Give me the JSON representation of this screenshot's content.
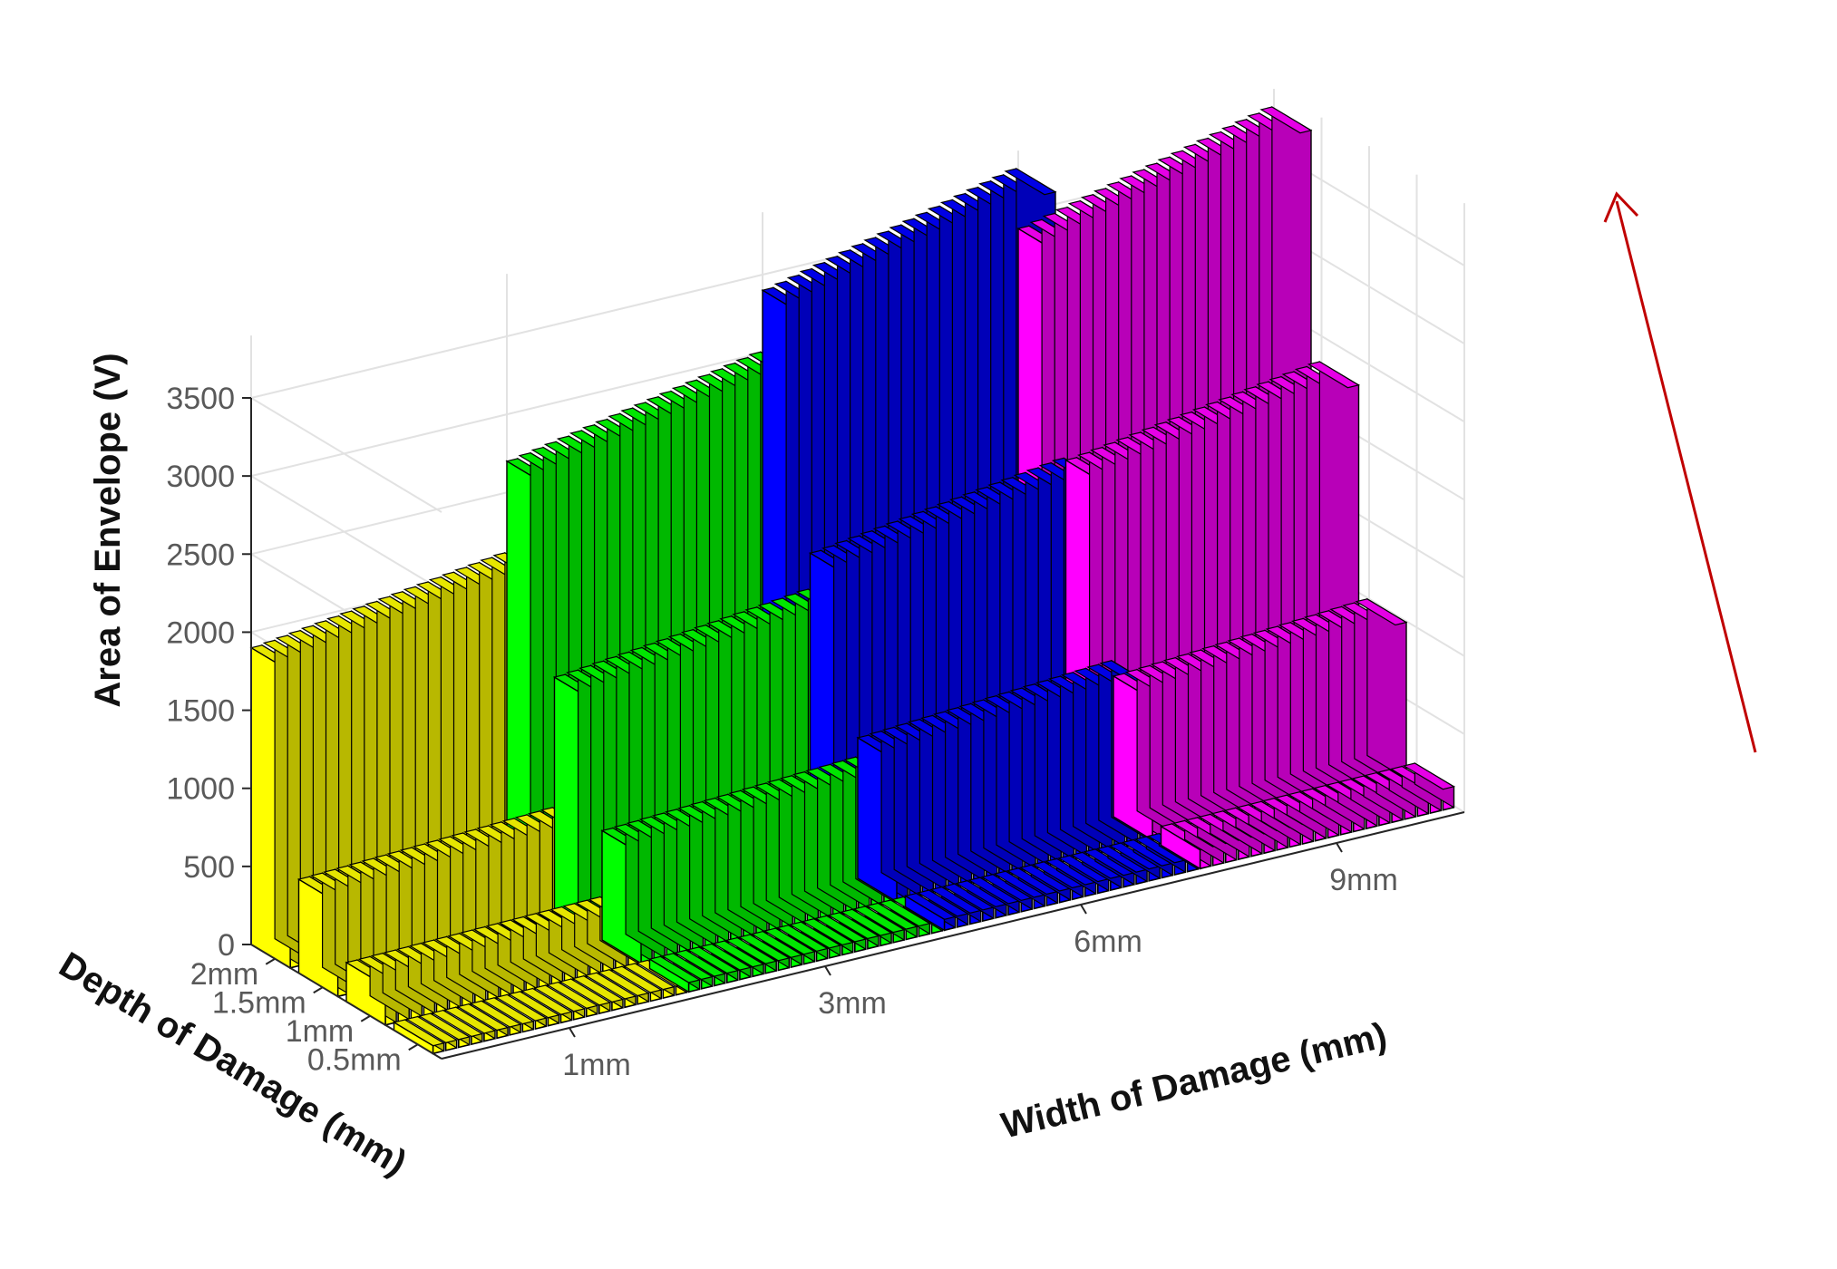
{
  "chart_data": {
    "type": "bar3d",
    "title": "",
    "xlabel": "Width of Damage (mm)",
    "ylabel": "Depth of Damage (mm)",
    "zlabel": "Area of Envelope  (V)",
    "width_groups": [
      "1mm",
      "3mm",
      "6mm",
      "9mm"
    ],
    "depth_categories": [
      "2mm",
      "1.5mm",
      "1mm",
      "0.5mm"
    ],
    "bars_per_group": 20,
    "zlim": [
      0,
      3500
    ],
    "zticks": [
      0,
      500,
      1000,
      1500,
      2000,
      2500,
      3000,
      3500
    ],
    "grid": true,
    "series_colors": [
      "#ffff00",
      "#00ff00",
      "#0000ff",
      "#ff00ff"
    ],
    "values": {
      "1mm": {
        "2mm": 1900,
        "1.5mm": 600,
        "1mm": 250,
        "0.5mm": 50
      },
      "3mm": {
        "2mm": 2700,
        "1.5mm": 1500,
        "1mm": 700,
        "0.5mm": 60
      },
      "6mm": {
        "2mm": 3400,
        "1.5mm": 1900,
        "1mm": 900,
        "0.5mm": 70
      },
      "9mm": {
        "2mm": 3400,
        "1.5mm": 2100,
        "1mm": 900,
        "0.5mm": 120
      }
    },
    "annotation": {
      "type": "arrow",
      "color": "#c00000",
      "direction": "increasing"
    }
  }
}
